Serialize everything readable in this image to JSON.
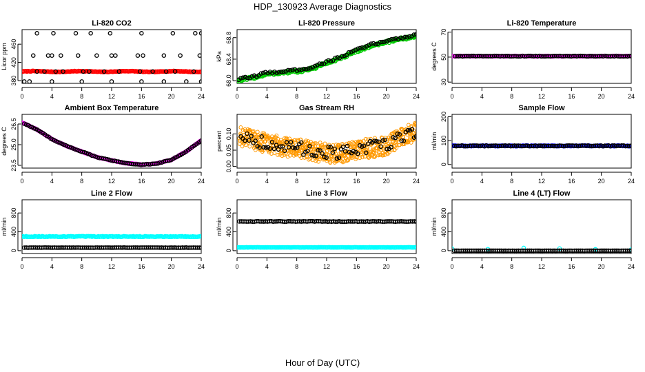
{
  "figure": {
    "title": "HDP_130923  Average Diagnostics",
    "xlabel": "Hour of Day (UTC)"
  },
  "chart_data": [
    {
      "type": "scatter",
      "title": "Li-820 CO2",
      "ylabel": "Licor ppm",
      "xlim": [
        0,
        24
      ],
      "ylim": [
        374,
        492
      ],
      "xticks": [
        "0",
        "4",
        "8",
        "12",
        "16",
        "20",
        "24"
      ],
      "yticks": [
        "380",
        "420",
        "460"
      ],
      "series": [
        {
          "color": "#ff0000",
          "pattern": "flat",
          "x0": 0.1,
          "x1": 24,
          "count": 170,
          "base": 400,
          "amp": 0.8,
          "noise": 0.6
        },
        {
          "color": "#000000",
          "pattern": "list",
          "x": [
            0.3,
            1,
            4,
            8,
            12,
            16,
            19,
            22,
            24,
            2,
            3,
            4.5,
            5.5,
            8.2,
            9,
            11,
            13,
            15.8,
            17.5,
            19.3,
            20.5,
            23,
            1.5,
            3.5,
            4,
            5.2,
            7.5,
            10,
            12,
            12.5,
            15.5,
            16.2,
            19,
            21.2,
            23.8,
            2,
            4.2,
            7.2,
            9.2,
            11.8,
            16,
            20.2,
            23.2,
            24
          ],
          "y": [
            378,
            378,
            378,
            378,
            378,
            378,
            378,
            378,
            378,
            400,
            400,
            400,
            400,
            400,
            400,
            400,
            400,
            400,
            400,
            400,
            400,
            400,
            435,
            435,
            435,
            435,
            435,
            435,
            435,
            435,
            435,
            435,
            435,
            435,
            435,
            484,
            484,
            484,
            484,
            484,
            484,
            484,
            484,
            484
          ]
        }
      ]
    },
    {
      "type": "scatter",
      "title": "Li-820 Pressure",
      "ylabel": "kPa",
      "xlim": [
        0,
        24
      ],
      "ylim": [
        67.95,
        68.95
      ],
      "xticks": [
        "0",
        "4",
        "8",
        "12",
        "16",
        "20",
        "24"
      ],
      "yticks": [
        "68.0",
        "68.4",
        "68.8"
      ],
      "series": [
        {
          "color": "#00cc00",
          "pattern": "curve",
          "x0": 0,
          "x1": 24,
          "count": 220,
          "pts": [
            [
              0,
              68.0
            ],
            [
              2,
              68.05
            ],
            [
              4,
              68.12
            ],
            [
              6,
              68.15
            ],
            [
              8,
              68.17
            ],
            [
              10,
              68.22
            ],
            [
              12,
              68.33
            ],
            [
              14,
              68.42
            ],
            [
              16,
              68.55
            ],
            [
              18,
              68.65
            ],
            [
              20,
              68.72
            ],
            [
              22,
              68.78
            ],
            [
              24,
              68.82
            ]
          ],
          "noise": 0.025
        },
        {
          "color": "#000000",
          "pattern": "curve",
          "x0": 0.2,
          "x1": 24,
          "count": 80,
          "pts": [
            [
              0,
              68.02
            ],
            [
              2,
              68.07
            ],
            [
              4,
              68.15
            ],
            [
              6,
              68.17
            ],
            [
              8,
              68.2
            ],
            [
              10,
              68.25
            ],
            [
              12,
              68.35
            ],
            [
              14,
              68.45
            ],
            [
              16,
              68.57
            ],
            [
              18,
              68.67
            ],
            [
              20,
              68.74
            ],
            [
              22,
              68.8
            ],
            [
              24,
              68.85
            ]
          ],
          "noise": 0.02
        }
      ]
    },
    {
      "type": "scatter",
      "title": "Li-820 Temperature",
      "ylabel": "degrees C",
      "xlim": [
        0,
        24
      ],
      "ylim": [
        29,
        72
      ],
      "xticks": [
        "0",
        "4",
        "8",
        "12",
        "16",
        "20",
        "24"
      ],
      "yticks": [
        "30",
        "50",
        "70"
      ],
      "series": [
        {
          "color": "#ff00ff",
          "pattern": "flat",
          "x0": 0,
          "x1": 24,
          "count": 130,
          "base": 50.8,
          "amp": 0,
          "noise": 0.2
        },
        {
          "color": "#000000",
          "pattern": "flat",
          "x0": 0.4,
          "x1": 24,
          "count": 95,
          "base": 50.8,
          "amp": 0,
          "noise": 0.2
        }
      ]
    },
    {
      "type": "scatter",
      "title": "Ambient Box Temperature",
      "ylabel": "degrees C",
      "xlim": [
        0,
        24
      ],
      "ylim": [
        23.3,
        27.2
      ],
      "xticks": [
        "0",
        "4",
        "8",
        "12",
        "16",
        "20",
        "24"
      ],
      "yticks": [
        "23.5",
        "25.0",
        "26.5"
      ],
      "series": [
        {
          "color": "#ff00ff",
          "pattern": "curve",
          "x0": 0,
          "x1": 24,
          "count": 160,
          "pts": [
            [
              0,
              26.6
            ],
            [
              2,
              26.1
            ],
            [
              4,
              25.4
            ],
            [
              6,
              24.9
            ],
            [
              8,
              24.5
            ],
            [
              10,
              24.1
            ],
            [
              12,
              23.85
            ],
            [
              14,
              23.65
            ],
            [
              16,
              23.55
            ],
            [
              18,
              23.62
            ],
            [
              20,
              23.9
            ],
            [
              22,
              24.5
            ],
            [
              24,
              25.3
            ]
          ],
          "noise": 0.02
        },
        {
          "color": "#000000",
          "pattern": "curve",
          "x0": 0.3,
          "x1": 24,
          "count": 95,
          "pts": [
            [
              0,
              26.6
            ],
            [
              2,
              26.1
            ],
            [
              4,
              25.4
            ],
            [
              6,
              24.9
            ],
            [
              8,
              24.5
            ],
            [
              10,
              24.1
            ],
            [
              12,
              23.85
            ],
            [
              14,
              23.65
            ],
            [
              16,
              23.55
            ],
            [
              18,
              23.62
            ],
            [
              20,
              23.9
            ],
            [
              22,
              24.5
            ],
            [
              24,
              25.3
            ]
          ],
          "noise": 0.02
        }
      ]
    },
    {
      "type": "scatter",
      "title": "Gas Stream RH",
      "ylabel": "percent",
      "xlim": [
        0,
        24
      ],
      "ylim": [
        -0.005,
        0.16
      ],
      "xticks": [
        "0",
        "4",
        "8",
        "12",
        "16",
        "20",
        "24"
      ],
      "yticks": [
        "0.00",
        "0.05",
        "0.10"
      ],
      "series": [
        {
          "color": "#ff9900",
          "pattern": "curve",
          "x0": 0.3,
          "x1": 24,
          "count": 600,
          "pts": [
            [
              0,
              0.095
            ],
            [
              4,
              0.07
            ],
            [
              8,
              0.055
            ],
            [
              12,
              0.04
            ],
            [
              14,
              0.04
            ],
            [
              16,
              0.05
            ],
            [
              20,
              0.065
            ],
            [
              24,
              0.11
            ]
          ],
          "noise": 0.03
        },
        {
          "color": "#000000",
          "pattern": "curve",
          "x0": 0.5,
          "x1": 24,
          "count": 85,
          "pts": [
            [
              0,
              0.1
            ],
            [
              4,
              0.07
            ],
            [
              8,
              0.055
            ],
            [
              12,
              0.045
            ],
            [
              14,
              0.04
            ],
            [
              16,
              0.05
            ],
            [
              20,
              0.07
            ],
            [
              24,
              0.11
            ]
          ],
          "noise": 0.02
        }
      ]
    },
    {
      "type": "scatter",
      "title": "Sample Flow",
      "ylabel": "ml/min",
      "xlim": [
        0,
        24
      ],
      "ylim": [
        -15,
        210
      ],
      "xticks": [
        "0",
        "4",
        "8",
        "12",
        "16",
        "20",
        "24"
      ],
      "yticks": [
        "0",
        "100",
        "200"
      ],
      "series": [
        {
          "color": "#0000ff",
          "pattern": "flat",
          "x0": 0,
          "x1": 24,
          "count": 150,
          "base": 78,
          "amp": 0,
          "noise": 1.5
        },
        {
          "color": "#000000",
          "pattern": "flat",
          "x0": 0.3,
          "x1": 24,
          "count": 95,
          "base": 78,
          "amp": 0,
          "noise": 1.5
        }
      ]
    },
    {
      "type": "scatter",
      "title": "Line 2 Flow",
      "ylabel": "ml/min",
      "xlim": [
        0,
        24
      ],
      "ylim": [
        -60,
        1080
      ],
      "xticks": [
        "0",
        "4",
        "8",
        "12",
        "16",
        "20",
        "24"
      ],
      "yticks": [
        "0",
        "400",
        "800"
      ],
      "series": [
        {
          "color": "#00ffff",
          "pattern": "flat",
          "x0": 0,
          "x1": 24,
          "count": 170,
          "base": 300,
          "amp": 0,
          "noise": 8
        },
        {
          "color": "#000000",
          "pattern": "flat",
          "x0": 0.3,
          "x1": 24,
          "count": 95,
          "base": 65,
          "amp": 0,
          "noise": 2
        }
      ]
    },
    {
      "type": "scatter",
      "title": "Line 3 Flow",
      "ylabel": "ml/min",
      "xlim": [
        0,
        24
      ],
      "ylim": [
        -60,
        1080
      ],
      "xticks": [
        "0",
        "4",
        "8",
        "12",
        "16",
        "20",
        "24"
      ],
      "yticks": [
        "0",
        "400",
        "800"
      ],
      "series": [
        {
          "color": "#00ffff",
          "pattern": "flat",
          "x0": 0,
          "x1": 24,
          "count": 170,
          "base": 70,
          "amp": 0,
          "noise": 3
        },
        {
          "color": "#000000",
          "pattern": "flat",
          "x0": 0.3,
          "x1": 24,
          "count": 95,
          "base": 620,
          "amp": 0,
          "noise": 5
        }
      ]
    },
    {
      "type": "scatter",
      "title": "Line 4 (LT) Flow",
      "ylabel": "ml/min",
      "xlim": [
        0,
        24
      ],
      "ylim": [
        -60,
        1080
      ],
      "xticks": [
        "0",
        "4",
        "8",
        "12",
        "16",
        "20",
        "24"
      ],
      "yticks": [
        "0",
        "400",
        "800"
      ],
      "series": [
        {
          "color": "#00ffff",
          "pattern": "flat",
          "x0": 0,
          "x1": 24,
          "count": 6,
          "base": 40,
          "amp": 0,
          "noise": 20
        },
        {
          "color": "#000000",
          "pattern": "flat",
          "x0": 0.3,
          "x1": 24,
          "count": 95,
          "base": 0,
          "amp": 0,
          "noise": 1
        }
      ]
    }
  ]
}
